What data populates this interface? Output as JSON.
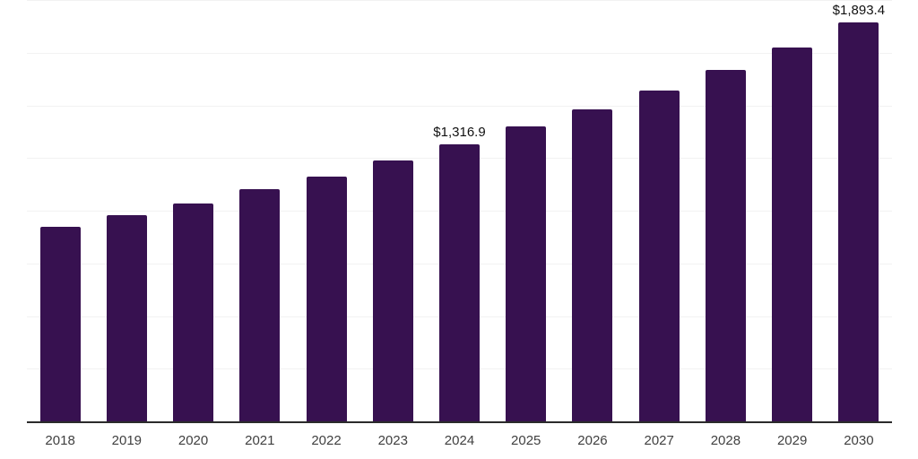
{
  "chart_data": {
    "type": "bar",
    "title": "",
    "xlabel": "",
    "ylabel": "",
    "categories": [
      "2018",
      "2019",
      "2020",
      "2021",
      "2022",
      "2023",
      "2024",
      "2025",
      "2026",
      "2027",
      "2028",
      "2029",
      "2030"
    ],
    "values": [
      923,
      980,
      1035,
      1104,
      1161,
      1240,
      1316.9,
      1398,
      1482,
      1572,
      1668,
      1776,
      1893.4
    ],
    "value_labels": {
      "2024": "$1,316.9",
      "2030": "$1,893.4"
    },
    "ylim": [
      0,
      2000
    ],
    "gridline_interval": 250,
    "grid": true,
    "legend": null,
    "colors": {
      "bar": "#371150",
      "axis_line": "#2b2b2b",
      "gridline": "#f2f2f2",
      "tick_label": "#404040",
      "value_label": "#111111",
      "background": "#ffffff"
    }
  }
}
